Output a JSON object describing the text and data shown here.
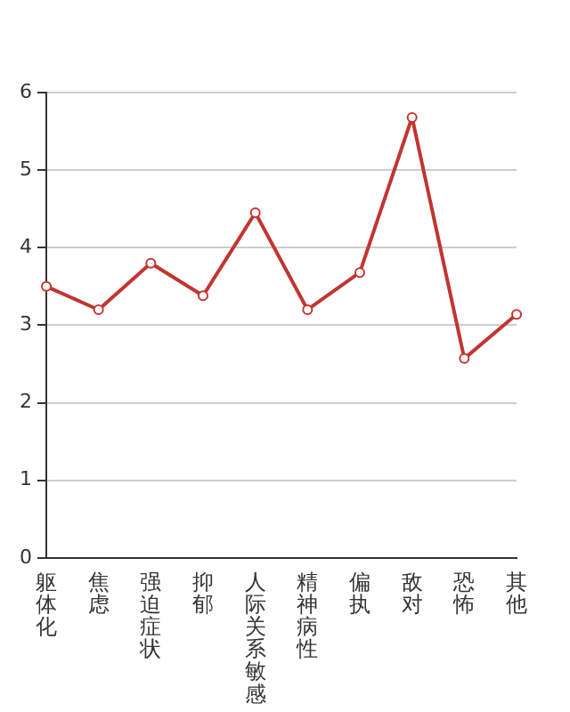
{
  "chart_data": {
    "type": "line",
    "categories": [
      "躯体化",
      "焦虑",
      "强迫症状",
      "抑郁",
      "人际关系敏感",
      "精神病性",
      "偏执",
      "敌对",
      "恐怖",
      "其他"
    ],
    "series": [
      {
        "color": "#c23531",
        "values": [
          3.5,
          3.2,
          3.8,
          3.38,
          4.45,
          3.2,
          3.68,
          5.68,
          2.57,
          3.14
        ]
      }
    ],
    "ylim": [
      0,
      6
    ],
    "yticks": [
      0,
      1,
      2,
      3,
      4,
      5,
      6
    ],
    "grid": "y",
    "legend": false,
    "marker": "circle",
    "line_style": "solid"
  }
}
